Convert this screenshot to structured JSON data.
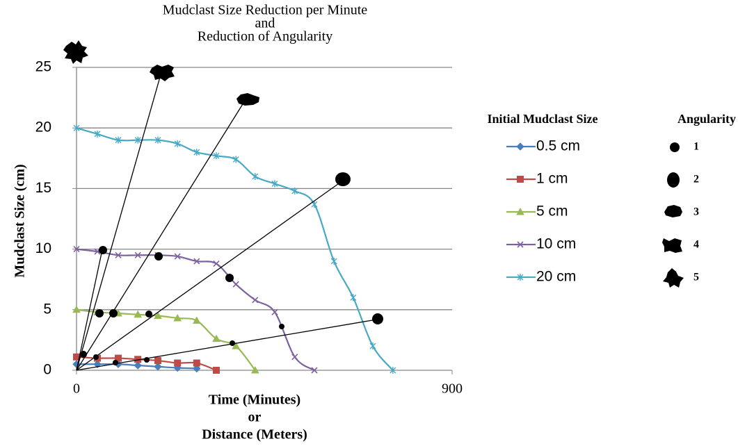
{
  "chart_data": {
    "type": "line",
    "title": [
      "Mudclast Size Reduction per Minute",
      "and",
      "Reduction of Angularity"
    ],
    "x_label": [
      "Time (Minutes)",
      "or",
      "Distance (Meters)"
    ],
    "y_label": "Mudclast Size (cm)",
    "xlim": [
      0,
      900
    ],
    "xticks": [
      0,
      900
    ],
    "ylim": [
      0,
      25
    ],
    "yticks": [
      0,
      5,
      10,
      15,
      20,
      25
    ],
    "grid": true,
    "legend_title": "Initial Mudclast Size",
    "series": [
      {
        "name": "0.5 cm",
        "color": "#4a7ebb",
        "marker": "diamond",
        "x": [
          0,
          50,
          100,
          147,
          195,
          242,
          288
        ],
        "values": [
          0.5,
          0.5,
          0.5,
          0.4,
          0.3,
          0.2,
          0.15
        ]
      },
      {
        "name": "1 cm",
        "color": "#be4b48",
        "marker": "square",
        "x": [
          0,
          50,
          100,
          147,
          195,
          242,
          288,
          335
        ],
        "values": [
          1.1,
          1.0,
          1.0,
          0.9,
          0.8,
          0.6,
          0.6,
          0
        ]
      },
      {
        "name": "5 cm",
        "color": "#98b954",
        "marker": "triangle",
        "x": [
          0,
          50,
          100,
          147,
          195,
          242,
          288,
          335,
          382,
          428
        ],
        "values": [
          5,
          4.8,
          4.7,
          4.6,
          4.5,
          4.3,
          4.1,
          2.6,
          2.0,
          0
        ]
      },
      {
        "name": "10 cm",
        "color": "#7d60a0",
        "marker": "x",
        "x": [
          0,
          50,
          100,
          147,
          195,
          242,
          288,
          335,
          382,
          428,
          475,
          523,
          570
        ],
        "values": [
          10,
          9.8,
          9.5,
          9.5,
          9.5,
          9.4,
          9.0,
          8.8,
          7.1,
          5.8,
          4.8,
          1.1,
          0
        ]
      },
      {
        "name": "20 cm",
        "color": "#46aac5",
        "marker": "star",
        "x": [
          0,
          50,
          100,
          147,
          195,
          242,
          288,
          335,
          382,
          428,
          475,
          523,
          570,
          617,
          663,
          710,
          758
        ],
        "values": [
          20,
          19.5,
          19,
          19,
          19,
          18.7,
          18,
          17.7,
          17.4,
          16,
          15.4,
          14.8,
          13.7,
          9,
          6,
          2,
          0
        ]
      }
    ],
    "angularity": {
      "title": "Angularity",
      "labels": [
        "1",
        "2",
        "3",
        "4",
        "5"
      ]
    }
  }
}
